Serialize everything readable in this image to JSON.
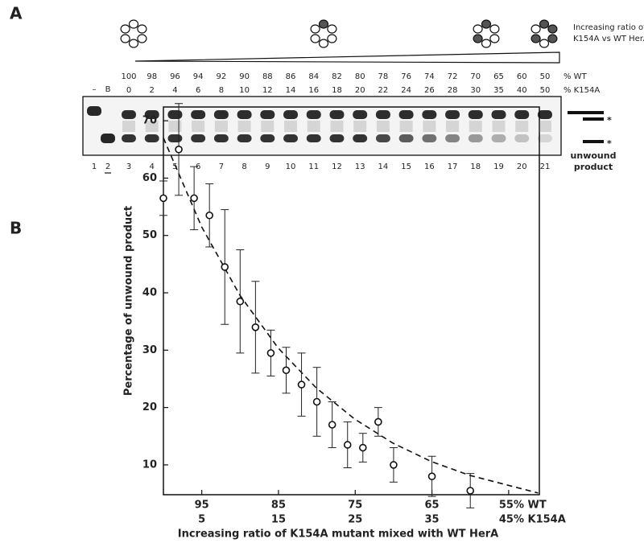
{
  "panel_a": {
    "label": "A",
    "ratio_caption": [
      "Increasing ratio of",
      "K154A vs WT HerA"
    ],
    "wt_row_label": "% WT",
    "k154a_row_label": "% K154A",
    "wt_percent": [
      100,
      98,
      96,
      94,
      92,
      90,
      88,
      86,
      84,
      82,
      80,
      78,
      76,
      74,
      72,
      70,
      65,
      60,
      50
    ],
    "k154a_percent": [
      0,
      2,
      4,
      6,
      8,
      10,
      12,
      14,
      16,
      18,
      20,
      22,
      24,
      26,
      28,
      30,
      35,
      40,
      50
    ],
    "lane_markers": [
      "–",
      "B"
    ],
    "lane_numbers": [
      1,
      2,
      3,
      4,
      5,
      6,
      7,
      8,
      9,
      10,
      11,
      12,
      13,
      14,
      15,
      16,
      17,
      18,
      19,
      20,
      21
    ],
    "band_markers": [
      "*",
      "*"
    ],
    "product_label": [
      "unwound",
      "product"
    ]
  },
  "chart_data": {
    "type": "scatter",
    "panel_label": "B",
    "x_label": "Increasing ratio of K154A mutant mixed with WT HerA",
    "y_label": "Percentage of unwound product",
    "x": [
      0,
      2,
      4,
      6,
      8,
      10,
      12,
      14,
      16,
      18,
      20,
      22,
      24,
      26,
      28,
      30,
      35,
      40
    ],
    "values": [
      56.5,
      65,
      56.5,
      53.5,
      44.5,
      38.5,
      34,
      29.5,
      26.5,
      24,
      21,
      17,
      13.5,
      13,
      17.5,
      10,
      8,
      5.5
    ],
    "errors": [
      3,
      8,
      5.5,
      5.5,
      10,
      9,
      8,
      4,
      4,
      5.5,
      6,
      4,
      4,
      2.5,
      2.5,
      3,
      3.5,
      3
    ],
    "xlim": [
      0,
      49
    ],
    "ylim": [
      4.8,
      72.4
    ],
    "xticks": [
      5,
      15,
      25,
      35,
      {
        "value": 45,
        "label": "45% K154A"
      }
    ],
    "xtick_wt_labels": [
      "95",
      "85",
      "75",
      "65",
      "55% WT"
    ],
    "yticks": [
      10,
      20,
      30,
      40,
      50,
      60,
      70
    ]
  }
}
